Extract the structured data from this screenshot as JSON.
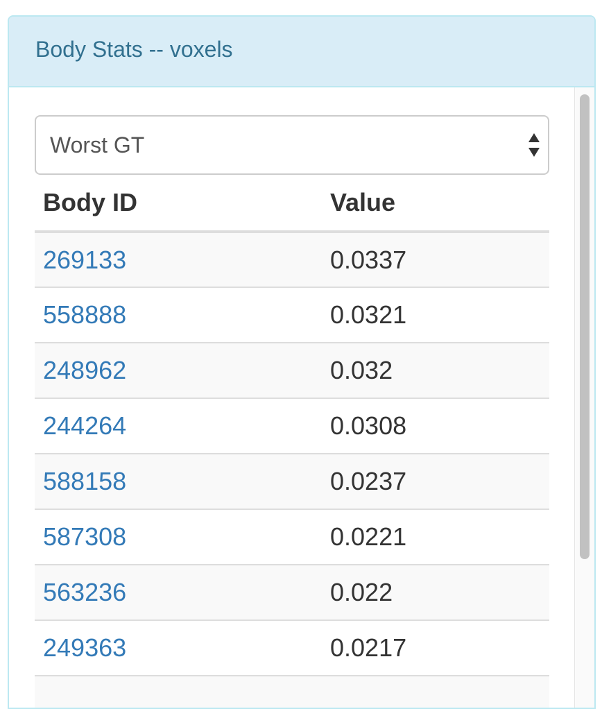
{
  "panel": {
    "title": "Body Stats -- voxels"
  },
  "select": {
    "value": "Worst GT"
  },
  "table": {
    "headers": {
      "body_id": "Body ID",
      "value": "Value"
    },
    "rows": [
      {
        "id": "269133",
        "value": "0.0337"
      },
      {
        "id": "558888",
        "value": "0.0321"
      },
      {
        "id": "248962",
        "value": "0.032"
      },
      {
        "id": "244264",
        "value": "0.0308"
      },
      {
        "id": "588158",
        "value": "0.0237"
      },
      {
        "id": "587308",
        "value": "0.0221"
      },
      {
        "id": "563236",
        "value": "0.022"
      },
      {
        "id": "249363",
        "value": "0.0217"
      },
      {
        "id": "",
        "value": ""
      }
    ]
  },
  "colors": {
    "heading_bg": "#d9edf7",
    "heading_text": "#31708f",
    "link": "#337ab7",
    "border": "#bce8f1"
  }
}
